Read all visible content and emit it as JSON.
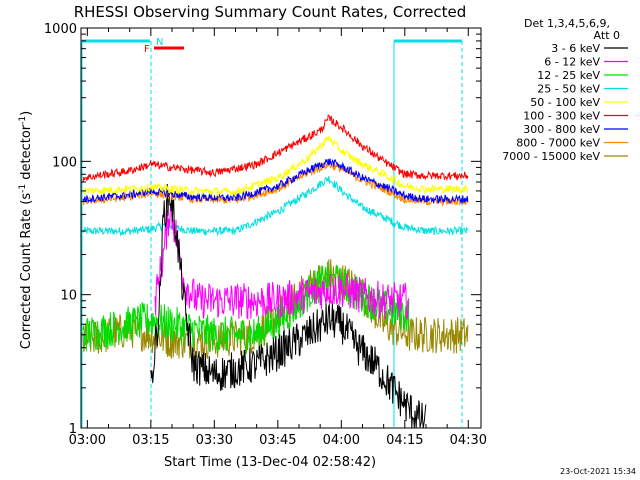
{
  "chart_data": {
    "type": "line",
    "title": "RHESSI Observing Summary Count Rates, Corrected",
    "xlabel": "Start Time (13-Dec-04 02:58:42)",
    "ylabel_main": "Corrected Count Rate (s",
    "ylabel_sup1": "-1",
    "ylabel_mid": " detector",
    "ylabel_sup2": "-1",
    "ylabel_end": ")",
    "yscale": "log",
    "ylim": [
      1,
      1000
    ],
    "xlim_minutes": [
      -1.5,
      36
    ],
    "x_unit_note": "",
    "x_ticks": [
      {
        "label": "03:00",
        "min": 0
      },
      {
        "label": "03:15",
        "min": 15
      },
      {
        "label": "03:30",
        "min": 30
      },
      {
        "label": "03:45",
        "min": 45
      },
      {
        "label": "04:00",
        "min": 60
      },
      {
        "label": "04:15",
        "min": 75
      },
      {
        "label": "04:30",
        "min": 90
      }
    ],
    "y_ticks": [
      {
        "label": "1",
        "value": 1
      },
      {
        "label": "10",
        "value": 10
      },
      {
        "label": "100",
        "value": 100
      },
      {
        "label": "1000",
        "value": 1000
      }
    ],
    "legend_header": [
      "Det 1,3,4,5,6,9,",
      "Att 0"
    ],
    "legend_placement": "right",
    "series": [
      {
        "name": "3 - 6 keV",
        "color": "#000000",
        "points": [
          [
            15,
            2
          ],
          [
            17,
            8
          ],
          [
            18,
            40
          ],
          [
            19.5,
            57
          ],
          [
            21,
            30
          ],
          [
            23,
            8
          ],
          [
            25,
            3
          ],
          [
            30,
            2.5
          ],
          [
            40,
            3
          ],
          [
            47,
            4
          ],
          [
            52,
            5
          ],
          [
            57,
            6.5
          ],
          [
            60,
            6
          ],
          [
            64,
            4
          ],
          [
            68,
            3
          ],
          [
            72,
            2
          ],
          [
            75,
            1.5
          ],
          [
            78,
            1.2
          ],
          [
            80,
            1.1
          ]
        ]
      },
      {
        "name": "6 - 12 keV",
        "color": "#ff00ff",
        "points": [
          [
            16,
            9
          ],
          [
            18,
            20
          ],
          [
            19.5,
            45
          ],
          [
            21,
            28
          ],
          [
            23,
            12
          ],
          [
            26,
            9
          ],
          [
            35,
            9
          ],
          [
            45,
            9
          ],
          [
            52,
            10
          ],
          [
            57,
            11
          ],
          [
            60,
            11
          ],
          [
            64,
            10
          ],
          [
            70,
            9
          ],
          [
            76,
            9
          ]
        ]
      },
      {
        "name": "12 - 25 keV",
        "color": "#00dd00",
        "points": [
          [
            -1,
            5
          ],
          [
            5,
            5.5
          ],
          [
            10,
            6
          ],
          [
            15,
            6.5
          ],
          [
            20,
            6
          ],
          [
            30,
            5
          ],
          [
            40,
            5
          ],
          [
            47,
            7
          ],
          [
            53,
            11
          ],
          [
            57,
            13
          ],
          [
            60,
            12
          ],
          [
            64,
            10
          ],
          [
            70,
            8
          ],
          [
            76,
            7
          ]
        ]
      },
      {
        "name": "25 - 50 keV",
        "color": "#00e0e0",
        "points": [
          [
            -1,
            30
          ],
          [
            10,
            30
          ],
          [
            15,
            31
          ],
          [
            18,
            33
          ],
          [
            25,
            30
          ],
          [
            35,
            30
          ],
          [
            45,
            42
          ],
          [
            52,
            58
          ],
          [
            57,
            75
          ],
          [
            60,
            60
          ],
          [
            65,
            45
          ],
          [
            70,
            38
          ],
          [
            75,
            32
          ],
          [
            80,
            30
          ],
          [
            90,
            30
          ]
        ]
      },
      {
        "name": "50 - 100 keV",
        "color": "#ffff00",
        "points": [
          [
            -1,
            60
          ],
          [
            10,
            62
          ],
          [
            15,
            64
          ],
          [
            25,
            60
          ],
          [
            35,
            59
          ],
          [
            45,
            75
          ],
          [
            52,
            105
          ],
          [
            57,
            150
          ],
          [
            60,
            120
          ],
          [
            65,
            95
          ],
          [
            70,
            80
          ],
          [
            75,
            65
          ],
          [
            80,
            62
          ],
          [
            90,
            62
          ]
        ]
      },
      {
        "name": "100 - 300 keV",
        "color": "#ff0000",
        "points": [
          [
            -1,
            75
          ],
          [
            10,
            85
          ],
          [
            15,
            95
          ],
          [
            20,
            90
          ],
          [
            30,
            82
          ],
          [
            40,
            95
          ],
          [
            48,
            130
          ],
          [
            55,
            170
          ],
          [
            57,
            210
          ],
          [
            60,
            180
          ],
          [
            65,
            130
          ],
          [
            70,
            100
          ],
          [
            75,
            80
          ],
          [
            80,
            78
          ],
          [
            90,
            78
          ]
        ]
      },
      {
        "name": "300 - 800 keV",
        "color": "#0000ff",
        "points": [
          [
            -1,
            52
          ],
          [
            10,
            56
          ],
          [
            15,
            60
          ],
          [
            25,
            54
          ],
          [
            35,
            53
          ],
          [
            45,
            65
          ],
          [
            52,
            85
          ],
          [
            57,
            100
          ],
          [
            60,
            92
          ],
          [
            65,
            75
          ],
          [
            70,
            65
          ],
          [
            75,
            55
          ],
          [
            80,
            52
          ],
          [
            90,
            52
          ]
        ]
      },
      {
        "name": "800 - 7000 keV",
        "color": "#ff8800",
        "points": [
          [
            -1,
            50
          ],
          [
            10,
            54
          ],
          [
            15,
            58
          ],
          [
            25,
            52
          ],
          [
            35,
            51
          ],
          [
            45,
            62
          ],
          [
            52,
            82
          ],
          [
            57,
            95
          ],
          [
            60,
            88
          ],
          [
            65,
            72
          ],
          [
            70,
            62
          ],
          [
            75,
            52
          ],
          [
            80,
            50
          ],
          [
            90,
            50
          ]
        ]
      },
      {
        "name": "7000 - 15000 keV",
        "color": "#998800",
        "points": [
          [
            -1,
            4.5
          ],
          [
            5,
            5
          ],
          [
            10,
            5.5
          ],
          [
            15,
            5
          ],
          [
            20,
            4.5
          ],
          [
            30,
            4.5
          ],
          [
            40,
            5
          ],
          [
            47,
            8
          ],
          [
            53,
            12
          ],
          [
            57,
            14
          ],
          [
            60,
            13
          ],
          [
            64,
            11
          ],
          [
            70,
            6
          ],
          [
            76,
            5
          ],
          [
            85,
            5
          ],
          [
            90,
            5
          ]
        ]
      }
    ],
    "annotations": {
      "flag_F": "F",
      "flag_N": "N",
      "timestamp": "23-Oct-2021 15:34"
    }
  }
}
